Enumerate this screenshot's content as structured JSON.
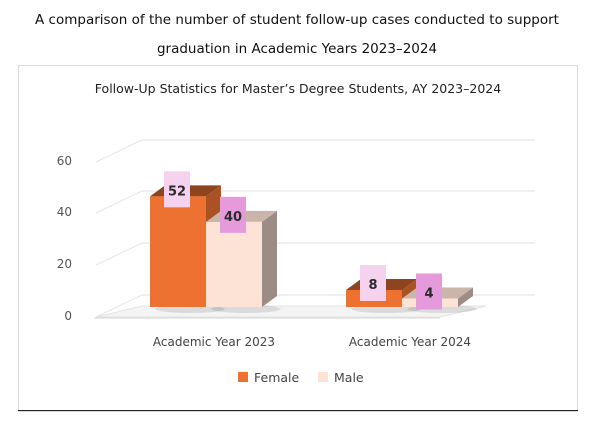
{
  "caption": {
    "line1": "A comparison of the number of student follow-up cases conducted to support",
    "line2": "graduation in Academic Years 2023–2024"
  },
  "chart_data": {
    "type": "bar",
    "title": "Follow-Up Statistics for Master’s Degree Students, AY 2023–2024",
    "categories": [
      "Academic Year 2023",
      "Academic Year 2024"
    ],
    "series": [
      {
        "name": "Female",
        "values": [
          52,
          8
        ],
        "color": "#ED7232"
      },
      {
        "name": "Male",
        "values": [
          40,
          4
        ],
        "color": "#FDE2D6"
      }
    ],
    "y_ticks": [
      "0",
      "20",
      "40",
      "60"
    ],
    "ylim": [
      0,
      70
    ],
    "grid": true,
    "legend_position": "bottom",
    "data_label_colors": [
      "#F5D2EE",
      "#E59ADC"
    ],
    "style": "3d-columns"
  }
}
